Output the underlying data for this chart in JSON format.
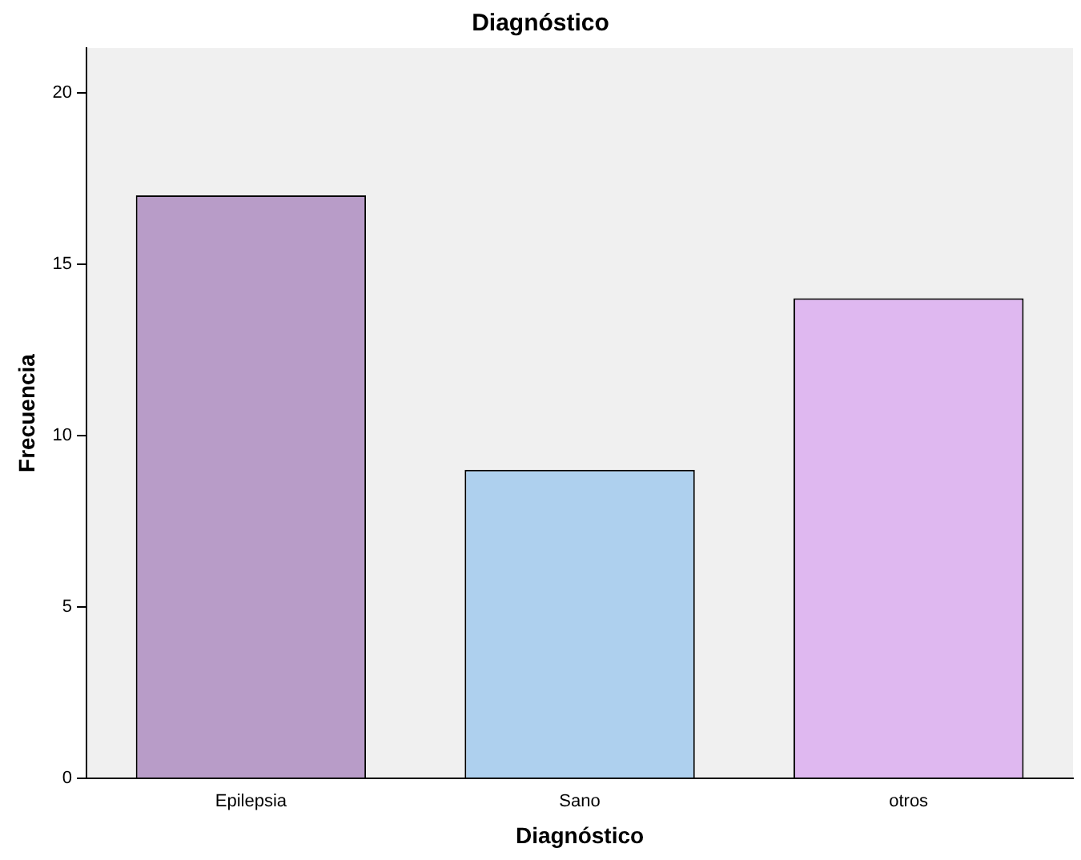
{
  "chart_data": {
    "type": "bar",
    "title": "Diagnóstico",
    "xlabel": "Diagnóstico",
    "ylabel": "Frecuencia",
    "categories": [
      "Epilepsia",
      "Sano",
      "otros"
    ],
    "values": [
      17,
      9,
      14
    ],
    "colors": [
      "#b89cc8",
      "#aed0ee",
      "#dfb8f0"
    ],
    "ylim": [
      0,
      21.3
    ],
    "yticks": [
      0,
      5,
      10,
      15,
      20
    ],
    "grid": false,
    "legend": false
  }
}
